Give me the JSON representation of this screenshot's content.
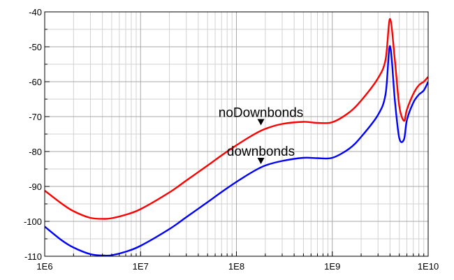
{
  "chart_data": {
    "type": "line",
    "title": "",
    "xlabel": "",
    "ylabel": "",
    "x_scale": "log",
    "xlim": [
      1000000,
      10000000000
    ],
    "ylim": [
      -110,
      -40
    ],
    "grid": true,
    "x_tick_labels": [
      "1E6",
      "1E7",
      "1E8",
      "1E9",
      "1E10"
    ],
    "x_tick_values": [
      1000000,
      10000000,
      100000000,
      1000000000,
      10000000000
    ],
    "y_tick_labels": [
      "-40",
      "-50",
      "-60",
      "-70",
      "-80",
      "-90",
      "-100",
      "-110"
    ],
    "y_tick_values": [
      -40,
      -50,
      -60,
      -70,
      -80,
      -90,
      -100,
      -110
    ],
    "series": [
      {
        "name": "noDownbonds",
        "color": "#ff0000",
        "x": [
          1000000,
          1500000,
          2000000,
          3000000,
          4200000,
          5000000,
          7000000,
          10000000,
          20000000,
          30000000,
          50000000,
          70000000,
          100000000,
          150000000,
          200000000,
          300000000,
          500000000,
          700000000,
          1000000000,
          1500000000,
          2000000000,
          3000000000,
          3600000000,
          4000000000,
          4500000000,
          5000000000,
          5600000000,
          6000000000,
          7000000000,
          8000000000,
          9000000000,
          10000000000
        ],
        "y": [
          -91.2,
          -94.9,
          -97.1,
          -99.0,
          -99.3,
          -99.1,
          -98.1,
          -96.5,
          -91.7,
          -88.3,
          -84.0,
          -81.1,
          -78.2,
          -75.2,
          -73.5,
          -72.1,
          -71.5,
          -71.8,
          -71.6,
          -68.8,
          -65.4,
          -59.0,
          -53.6,
          -42.0,
          -54.0,
          -67.0,
          -71.2,
          -68.0,
          -63.5,
          -61.0,
          -60.0,
          -58.6
        ]
      },
      {
        "name": "downbonds",
        "color": "#0000ff",
        "x": [
          1000000,
          1500000,
          2000000,
          3000000,
          4200000,
          5000000,
          7000000,
          10000000,
          20000000,
          30000000,
          50000000,
          70000000,
          100000000,
          150000000,
          200000000,
          300000000,
          500000000,
          700000000,
          1000000000,
          1500000000,
          2000000000,
          3000000000,
          3600000000,
          4000000000,
          4500000000,
          5000000000,
          5600000000,
          6000000000,
          7000000000,
          8000000000,
          9000000000,
          10000000000
        ],
        "y": [
          -101.5,
          -105.4,
          -107.5,
          -109.4,
          -109.8,
          -109.7,
          -108.7,
          -107.0,
          -102.2,
          -98.8,
          -94.5,
          -91.6,
          -88.7,
          -85.7,
          -84.0,
          -82.7,
          -81.8,
          -81.9,
          -81.8,
          -79.2,
          -75.8,
          -69.5,
          -63.5,
          -49.8,
          -65.5,
          -76.2,
          -76.5,
          -71.0,
          -66.0,
          -63.7,
          -62.5,
          -60.0
        ]
      }
    ],
    "annotations": [
      {
        "text": "noDownbonds",
        "x": 180000000,
        "y": -72.5
      },
      {
        "text": "downbonds",
        "x": 180000000,
        "y": -83.6
      }
    ]
  }
}
